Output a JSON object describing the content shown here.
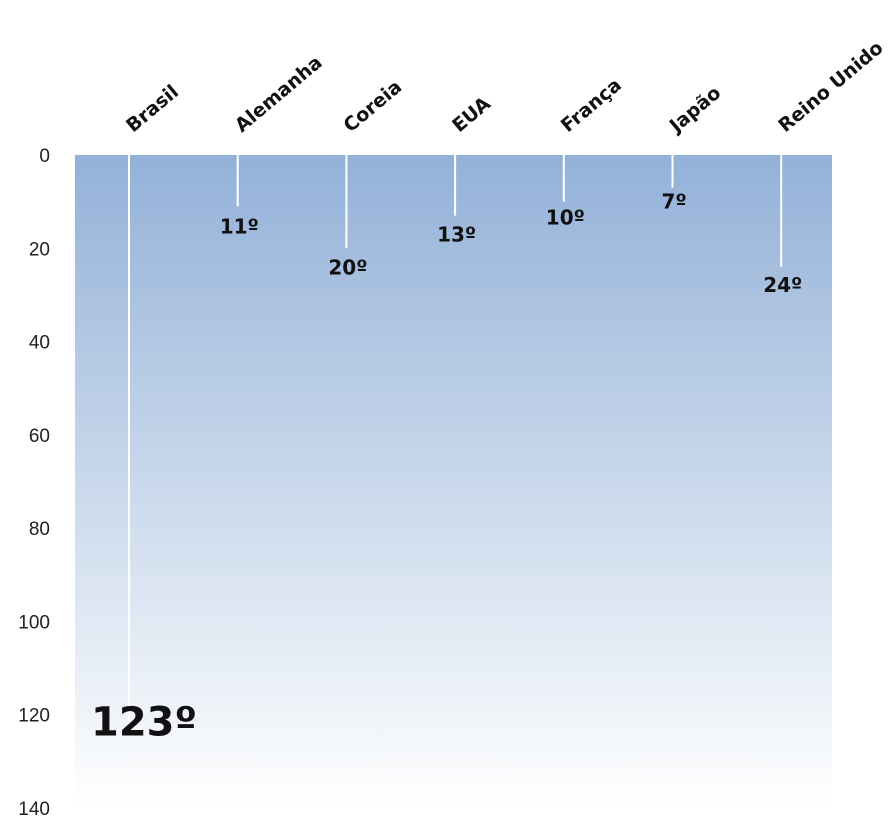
{
  "chart_data": {
    "type": "bar",
    "orientation": "vertical",
    "axis_inverted": true,
    "x_axis_position": "top",
    "categories": [
      "Brasil",
      "Alemanha",
      "Coreia",
      "EUA",
      "França",
      "Japão",
      "Reino Unido"
    ],
    "values": [
      123,
      11,
      20,
      13,
      10,
      7,
      24
    ],
    "labels": [
      "123º",
      "11º",
      "20º",
      "13º",
      "10º",
      "7º",
      "24º"
    ],
    "ylim": [
      0,
      140
    ],
    "yticks": [
      0,
      20,
      40,
      60,
      80,
      100,
      120,
      140
    ],
    "title": "",
    "xlabel": "",
    "ylabel": "",
    "grid": false,
    "legend": "none",
    "highlight_index": 0,
    "colors": {
      "background_top": "#93b1d8",
      "background_bottom": "#ffffff",
      "bar": "#ffffff",
      "label": "#111111",
      "highlight_label": "#ff0000"
    }
  }
}
